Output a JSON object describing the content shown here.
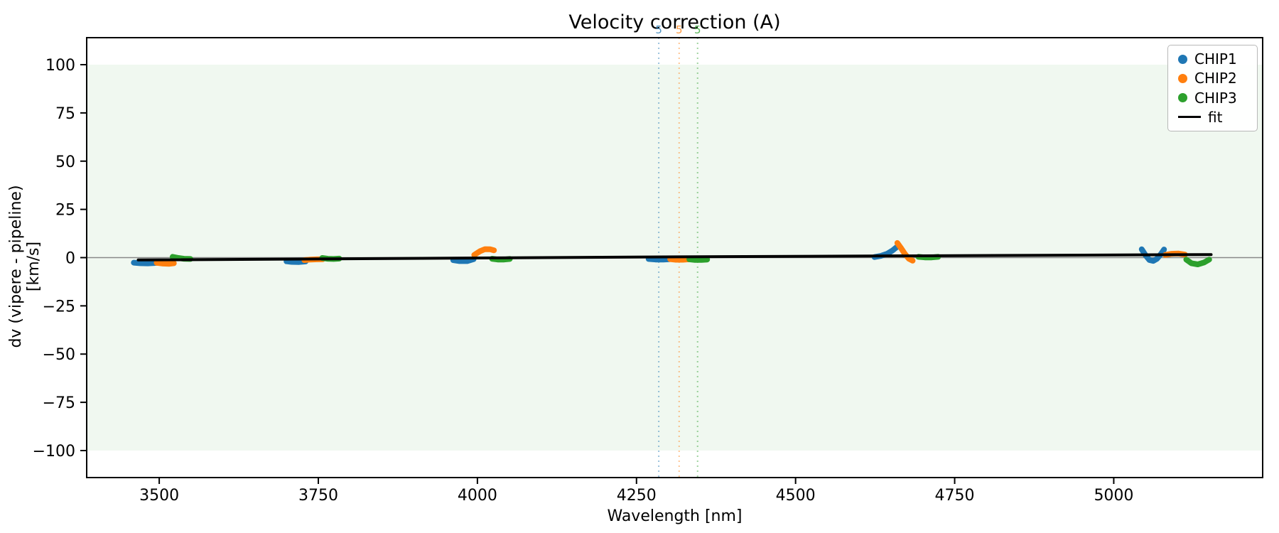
{
  "title": "Velocity correction (A)",
  "axes": {
    "xlabel": "Wavelength [nm]",
    "ylabel": "dv (vipere - pipeline) [km/s]"
  },
  "legend": {
    "items": [
      {
        "label": "CHIP1",
        "marker": "dot",
        "color": "#1f77b4"
      },
      {
        "label": "CHIP2",
        "marker": "dot",
        "color": "#ff7f0e"
      },
      {
        "label": "CHIP3",
        "marker": "dot",
        "color": "#2ca02c"
      },
      {
        "label": "fit",
        "marker": "line",
        "color": "#000000"
      }
    ]
  },
  "chart_data": {
    "type": "scatter",
    "title": "Velocity correction (A)",
    "xlabel": "Wavelength [nm]",
    "ylabel": "dv (vipere - pipeline) [km/s]",
    "xlim": [
      3386,
      5234
    ],
    "ylim": [
      -114,
      114
    ],
    "x_ticks": [
      3500,
      3750,
      4000,
      4250,
      4500,
      4750,
      5000
    ],
    "y_ticks": [
      100,
      75,
      50,
      25,
      0,
      -25,
      -50,
      -75,
      -100
    ],
    "grid": false,
    "legend_position": "upper right",
    "background_band": {
      "y_from": -100,
      "y_to": 100,
      "color": "#2ca02c",
      "opacity": 0.07
    },
    "zero_line": {
      "y": 0,
      "color": "#888888",
      "width": 1.5
    },
    "vlines": [
      {
        "x": 4285,
        "label": "5",
        "color": "#1f77b4"
      },
      {
        "x": 4317,
        "label": "5",
        "color": "#ff7f0e"
      },
      {
        "x": 4346,
        "label": "5",
        "color": "#2ca02c"
      }
    ],
    "series": [
      {
        "name": "CHIP1",
        "color": "#1f77b4",
        "stroke": 8,
        "segments": [
          [
            [
              3460,
              -2.6
            ],
            [
              3470,
              -2.9
            ],
            [
              3482,
              -3.0
            ],
            [
              3492,
              -2.8
            ],
            [
              3498,
              -2.6
            ]
          ],
          [
            [
              3700,
              -1.9
            ],
            [
              3708,
              -2.2
            ],
            [
              3720,
              -2.3
            ],
            [
              3730,
              -2.0
            ]
          ],
          [
            [
              3962,
              -1.3
            ],
            [
              3972,
              -1.8
            ],
            [
              3984,
              -1.8
            ],
            [
              3994,
              -0.8
            ]
          ],
          [
            [
              4269,
              -0.7
            ],
            [
              4280,
              -1.0
            ],
            [
              4292,
              -1.0
            ],
            [
              4302,
              -0.8
            ]
          ],
          [
            [
              4624,
              0.3
            ],
            [
              4634,
              0.9
            ],
            [
              4644,
              2.0
            ],
            [
              4652,
              3.6
            ],
            [
              4659,
              5.5
            ]
          ],
          [
            [
              5044,
              4.3
            ],
            [
              5050,
              1.2
            ],
            [
              5056,
              -1.2
            ],
            [
              5062,
              -1.7
            ],
            [
              5068,
              -0.6
            ],
            [
              5074,
              1.8
            ],
            [
              5079,
              4.2
            ]
          ]
        ]
      },
      {
        "name": "CHIP2",
        "color": "#ff7f0e",
        "stroke": 8,
        "segments": [
          [
            [
              3496,
              -2.7
            ],
            [
              3506,
              -3.1
            ],
            [
              3516,
              -3.2
            ],
            [
              3523,
              -2.9
            ]
          ],
          [
            [
              3728,
              -1.3
            ],
            [
              3738,
              -1.0
            ],
            [
              3748,
              -0.9
            ],
            [
              3757,
              -0.8
            ]
          ],
          [
            [
              3995,
              1.4
            ],
            [
              4004,
              3.3
            ],
            [
              4012,
              4.4
            ],
            [
              4020,
              4.3
            ],
            [
              4026,
              3.8
            ]
          ],
          [
            [
              4303,
              -0.8
            ],
            [
              4312,
              -1.1
            ],
            [
              4323,
              -1.1
            ],
            [
              4332,
              -0.9
            ]
          ],
          [
            [
              4660,
              7.6
            ],
            [
              4666,
              4.8
            ],
            [
              4672,
              1.8
            ],
            [
              4678,
              -0.6
            ],
            [
              4684,
              -1.6
            ]
          ],
          [
            [
              5081,
              1.4
            ],
            [
              5091,
              2.0
            ],
            [
              5102,
              2.1
            ],
            [
              5112,
              1.6
            ]
          ]
        ]
      },
      {
        "name": "CHIP3",
        "color": "#2ca02c",
        "stroke": 8,
        "segments": [
          [
            [
              3521,
              0.4
            ],
            [
              3530,
              -0.2
            ],
            [
              3539,
              -0.6
            ],
            [
              3549,
              -0.7
            ]
          ],
          [
            [
              3756,
              -0.2
            ],
            [
              3765,
              -0.6
            ],
            [
              3774,
              -0.7
            ],
            [
              3783,
              -0.5
            ]
          ],
          [
            [
              4023,
              -0.6
            ],
            [
              4032,
              -1.0
            ],
            [
              4042,
              -1.0
            ],
            [
              4051,
              -0.7
            ]
          ],
          [
            [
              4333,
              -0.9
            ],
            [
              4342,
              -1.2
            ],
            [
              4352,
              -1.2
            ],
            [
              4361,
              -1.0
            ]
          ],
          [
            [
              4693,
              0.4
            ],
            [
              4703,
              0.1
            ],
            [
              4714,
              0.1
            ],
            [
              4724,
              0.4
            ]
          ],
          [
            [
              5114,
              -1.0
            ],
            [
              5122,
              -2.9
            ],
            [
              5132,
              -3.5
            ],
            [
              5142,
              -2.5
            ],
            [
              5150,
              -1.0
            ]
          ]
        ]
      },
      {
        "name": "fit",
        "color": "#000000",
        "stroke": 4,
        "type": "line",
        "segments": [
          [
            [
              3467,
              -1.2
            ],
            [
              4320,
              0.4
            ],
            [
              5153,
              1.6
            ]
          ]
        ]
      }
    ]
  }
}
